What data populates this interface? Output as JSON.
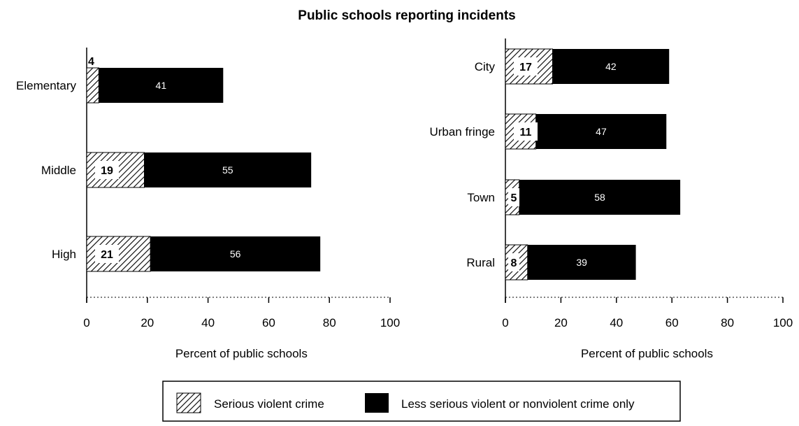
{
  "title": "Public schools  reporting incidents",
  "legend": [
    {
      "key": "serious",
      "label": "Serious violent crime",
      "pattern": "hatch"
    },
    {
      "key": "less",
      "label": "Less serious violent or nonviolent crime only",
      "color": "#000000"
    }
  ],
  "chart_data": [
    {
      "type": "bar",
      "orientation": "horizontal",
      "stacked": true,
      "categories": [
        "Elementary",
        "Middle",
        "High"
      ],
      "series": [
        {
          "name": "Serious violent crime",
          "values": [
            4,
            19,
            21
          ]
        },
        {
          "name": "Less serious violent or nonviolent crime only",
          "values": [
            41,
            55,
            56
          ]
        }
      ],
      "xlabel": "Percent of public schools",
      "xlim": [
        0,
        100
      ],
      "xticks": [
        "0",
        "20",
        "40",
        "60",
        "80",
        "100"
      ]
    },
    {
      "type": "bar",
      "orientation": "horizontal",
      "stacked": true,
      "categories": [
        "City",
        "Urban fringe",
        "Town",
        "Rural"
      ],
      "series": [
        {
          "name": "Serious violent crime",
          "values": [
            17,
            11,
            5,
            8
          ]
        },
        {
          "name": "Less serious violent or nonviolent crime only",
          "values": [
            42,
            47,
            58,
            39
          ]
        }
      ],
      "xlabel": "Percent of public schools",
      "xlim": [
        0,
        100
      ],
      "xticks": [
        "0",
        "20",
        "40",
        "60",
        "80",
        "100"
      ]
    }
  ]
}
